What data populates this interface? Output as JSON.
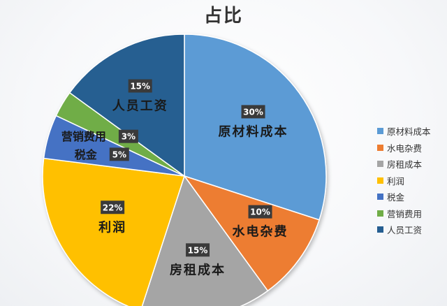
{
  "chart_data": {
    "type": "pie",
    "title": "占比",
    "start": "top",
    "direction": "clockwise",
    "legend_position": "right",
    "slices": [
      {
        "name": "原材料成本",
        "value": 30,
        "label": "30%",
        "color": "#5b9bd5"
      },
      {
        "name": "水电杂费",
        "value": 10,
        "label": "10%",
        "color": "#ed7d31"
      },
      {
        "name": "房租成本",
        "value": 15,
        "label": "15%",
        "color": "#a5a5a5"
      },
      {
        "name": "利润",
        "value": 22,
        "label": "22%",
        "color": "#ffc000"
      },
      {
        "name": "税金",
        "value": 5,
        "label": "5%",
        "color": "#4472c4"
      },
      {
        "name": "营销费用",
        "value": 3,
        "label": "3%",
        "color": "#70ad47"
      },
      {
        "name": "人员工资",
        "value": 15,
        "label": "15%",
        "color": "#255e91"
      }
    ]
  }
}
